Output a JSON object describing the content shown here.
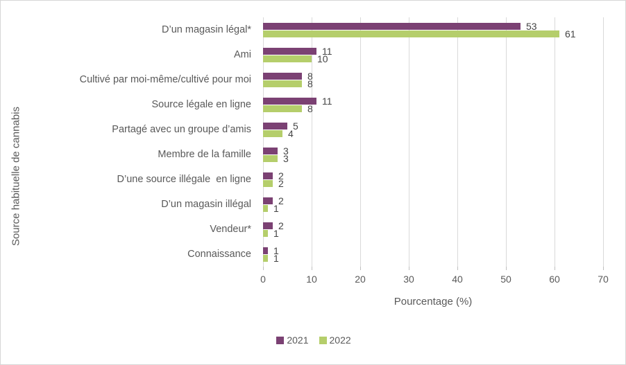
{
  "chart_data": {
    "type": "bar",
    "orientation": "horizontal",
    "title": "",
    "xlabel": "Pourcentage (%)",
    "ylabel": "Source habituelle de cannabis",
    "xlim": [
      0,
      70
    ],
    "xticks": [
      0,
      10,
      20,
      30,
      40,
      50,
      60,
      70
    ],
    "grid": "vertical major gridlines on",
    "legend_position": "bottom-center",
    "categories": [
      "D’un magasin légal*",
      "Ami",
      "Cultivé par moi-même/cultivé pour moi",
      "Source légale en ligne",
      "Partagé avec un groupe d’amis",
      "Membre de la famille",
      "D’une source illégale  en ligne",
      "D’un magasin illégal",
      "Vendeur*",
      "Connaissance"
    ],
    "series": [
      {
        "name": "2021",
        "color": "#7B4173",
        "values": [
          53,
          11,
          8,
          11,
          5,
          3,
          2,
          2,
          2,
          1
        ]
      },
      {
        "name": "2022",
        "color": "#B5CE6B",
        "values": [
          61,
          10,
          8,
          8,
          4,
          3,
          2,
          1,
          1,
          1
        ]
      }
    ]
  },
  "colors": {
    "gridline": "#d9d9d9",
    "tick": "#bfbfbf",
    "axis_text": "#595959",
    "data_label_text": "#444444",
    "background": "#ffffff",
    "border": "#d6d6d6"
  }
}
